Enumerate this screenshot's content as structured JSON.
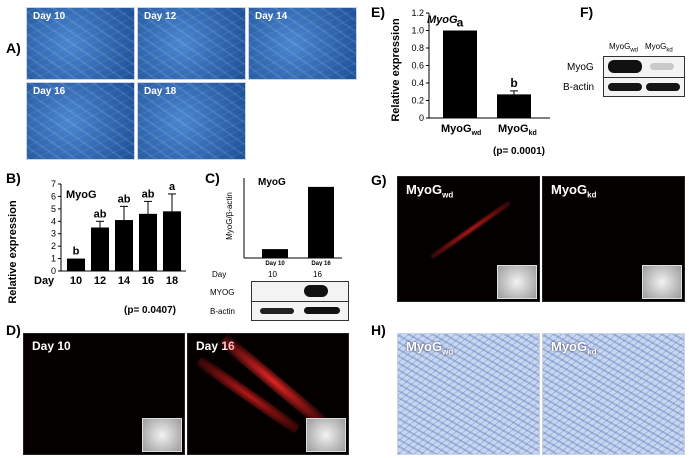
{
  "panels": {
    "A": {
      "label": "A)",
      "images": [
        "Day 10",
        "Day 12",
        "Day 14",
        "Day 16",
        "Day 18"
      ]
    },
    "B": {
      "label": "B)",
      "gene": "MyoG",
      "ylabel": "Relative expression",
      "xprefix": "Day",
      "pvalue": "(p= 0.0407)"
    },
    "C": {
      "label": "C)",
      "gene": "MyoG",
      "ylabel": "MyoG/β-actin",
      "day_label": "Day",
      "days": [
        "10",
        "16"
      ],
      "blot_rows": [
        "MYOG",
        "B-actin"
      ]
    },
    "D": {
      "label": "D)",
      "images": [
        "Day 10",
        "Day 16"
      ]
    },
    "E": {
      "label": "E)",
      "gene": "MyoG",
      "ylabel": "Relative expression",
      "pvalue": "(p= 0.0001)"
    },
    "F": {
      "label": "F)",
      "lanes": [
        "MyoGwd",
        "MyoGkd"
      ],
      "rows": [
        "MyoG",
        "B-actin"
      ]
    },
    "G": {
      "label": "G)",
      "images": [
        "MyoGwd",
        "MyoGkd"
      ]
    },
    "H": {
      "label": "H)",
      "images": [
        "MyoGwd",
        "MyoGkd"
      ]
    }
  },
  "chart_data": [
    {
      "type": "bar",
      "panel": "B",
      "title": "MyoG",
      "xlabel": "Day",
      "ylabel": "Relative expression",
      "categories": [
        "10",
        "12",
        "14",
        "16",
        "18"
      ],
      "values": [
        1.0,
        3.5,
        4.1,
        4.6,
        4.8
      ],
      "errors": [
        0.0,
        0.5,
        1.1,
        1.0,
        1.4
      ],
      "letters": [
        "b",
        "ab",
        "ab",
        "ab",
        "a"
      ],
      "ylim": [
        0,
        7
      ],
      "yticks": [
        0,
        1,
        2,
        3,
        4,
        5,
        6,
        7
      ],
      "annotation": "(p= 0.0407)"
    },
    {
      "type": "bar",
      "panel": "C",
      "title": "MyoG",
      "ylabel": "MyoG/β-actin",
      "categories": [
        "Day 10",
        "Day 16"
      ],
      "values": [
        1.0,
        8.0
      ],
      "ylim": [
        0,
        9
      ]
    },
    {
      "type": "bar",
      "panel": "E",
      "title": "MyoG",
      "ylabel": "Relative expression",
      "categories": [
        "MyoGwd",
        "MyoGkd"
      ],
      "values": [
        1.0,
        0.27
      ],
      "errors": [
        0.0,
        0.04
      ],
      "letters": [
        "a",
        "b"
      ],
      "ylim": [
        0,
        1.2
      ],
      "yticks": [
        "0",
        "0.2",
        "0.4",
        "0.6",
        "0.8",
        "1.0",
        "1.2"
      ],
      "annotation": "(p= 0.0001)"
    }
  ]
}
